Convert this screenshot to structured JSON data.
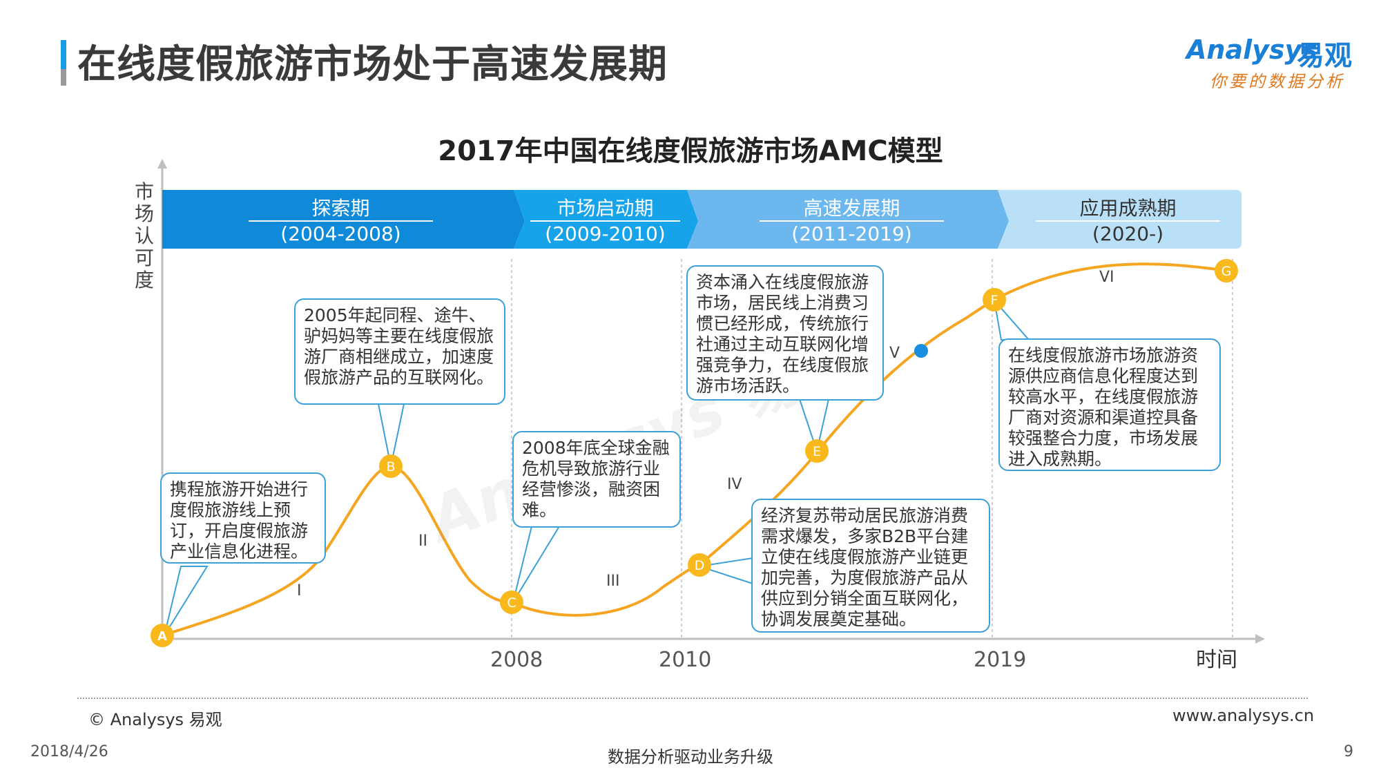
{
  "page_title": "在线度假旅游市场处于高速发展期",
  "logo": {
    "en": "Analysys",
    "cn": "易观",
    "slogan": "你要的数据分析"
  },
  "chart_title": "2017年中国在线度假旅游市场AMC模型",
  "y_axis_label": "市场认可度",
  "x_axis_label": "时间",
  "phases": [
    {
      "name": "探索期",
      "period": "(2004-2008)",
      "color": "#0f8ad8"
    },
    {
      "name": "市场启动期",
      "period": "(2009-2010)",
      "color": "#16a3ea"
    },
    {
      "name": "高速发展期",
      "period": "(2011-2019)",
      "color": "#6cb8ee"
    },
    {
      "name": "应用成熟期",
      "period": "(2020-)",
      "color": "#b9e0f6"
    }
  ],
  "years": [
    "2008",
    "2010",
    "2019"
  ],
  "points": [
    "A",
    "B",
    "C",
    "D",
    "E",
    "F",
    "G"
  ],
  "stages": [
    "I",
    "II",
    "III",
    "IV",
    "V",
    "VI"
  ],
  "callouts": [
    "携程旅游开始进行度假旅游线上预订，开启度假旅游产业信息化进程。",
    "2005年起同程、途牛、驴妈妈等主要在线度假旅游厂商相继成立，加速度假旅游产品的互联网化。",
    "2008年底全球金融危机导致旅游行业经营惨淡，融资困难。",
    "资本涌入在线度假旅游市场，居民线上消费习惯已经形成，传统旅行社通过主动互联网化增强竞争力，在线度假旅游市场活跃。",
    "经济复苏带动居民旅游消费需求爆发，多家B2B平台建立使在线度假旅游产业链更加完善，为度假旅游产品从供应到分销全面互联网化，协调发展奠定基础。",
    "在线度假旅游市场旅游资源供应商信息化程度达到较高水平，在线度假旅游厂商对资源和渠道控具备较强整合力度，市场发展进入成熟期。"
  ],
  "footer": {
    "copyright": "© Analysys 易观",
    "website": "www.analysys.cn",
    "date": "2018/4/26",
    "slogan": "数据分析驱动业务升级",
    "page": "9"
  },
  "colors": {
    "curve": "#f5a51f",
    "point": "#f9b81b",
    "border": "#3aa0d8",
    "marker_v": "#1a8ee0"
  }
}
